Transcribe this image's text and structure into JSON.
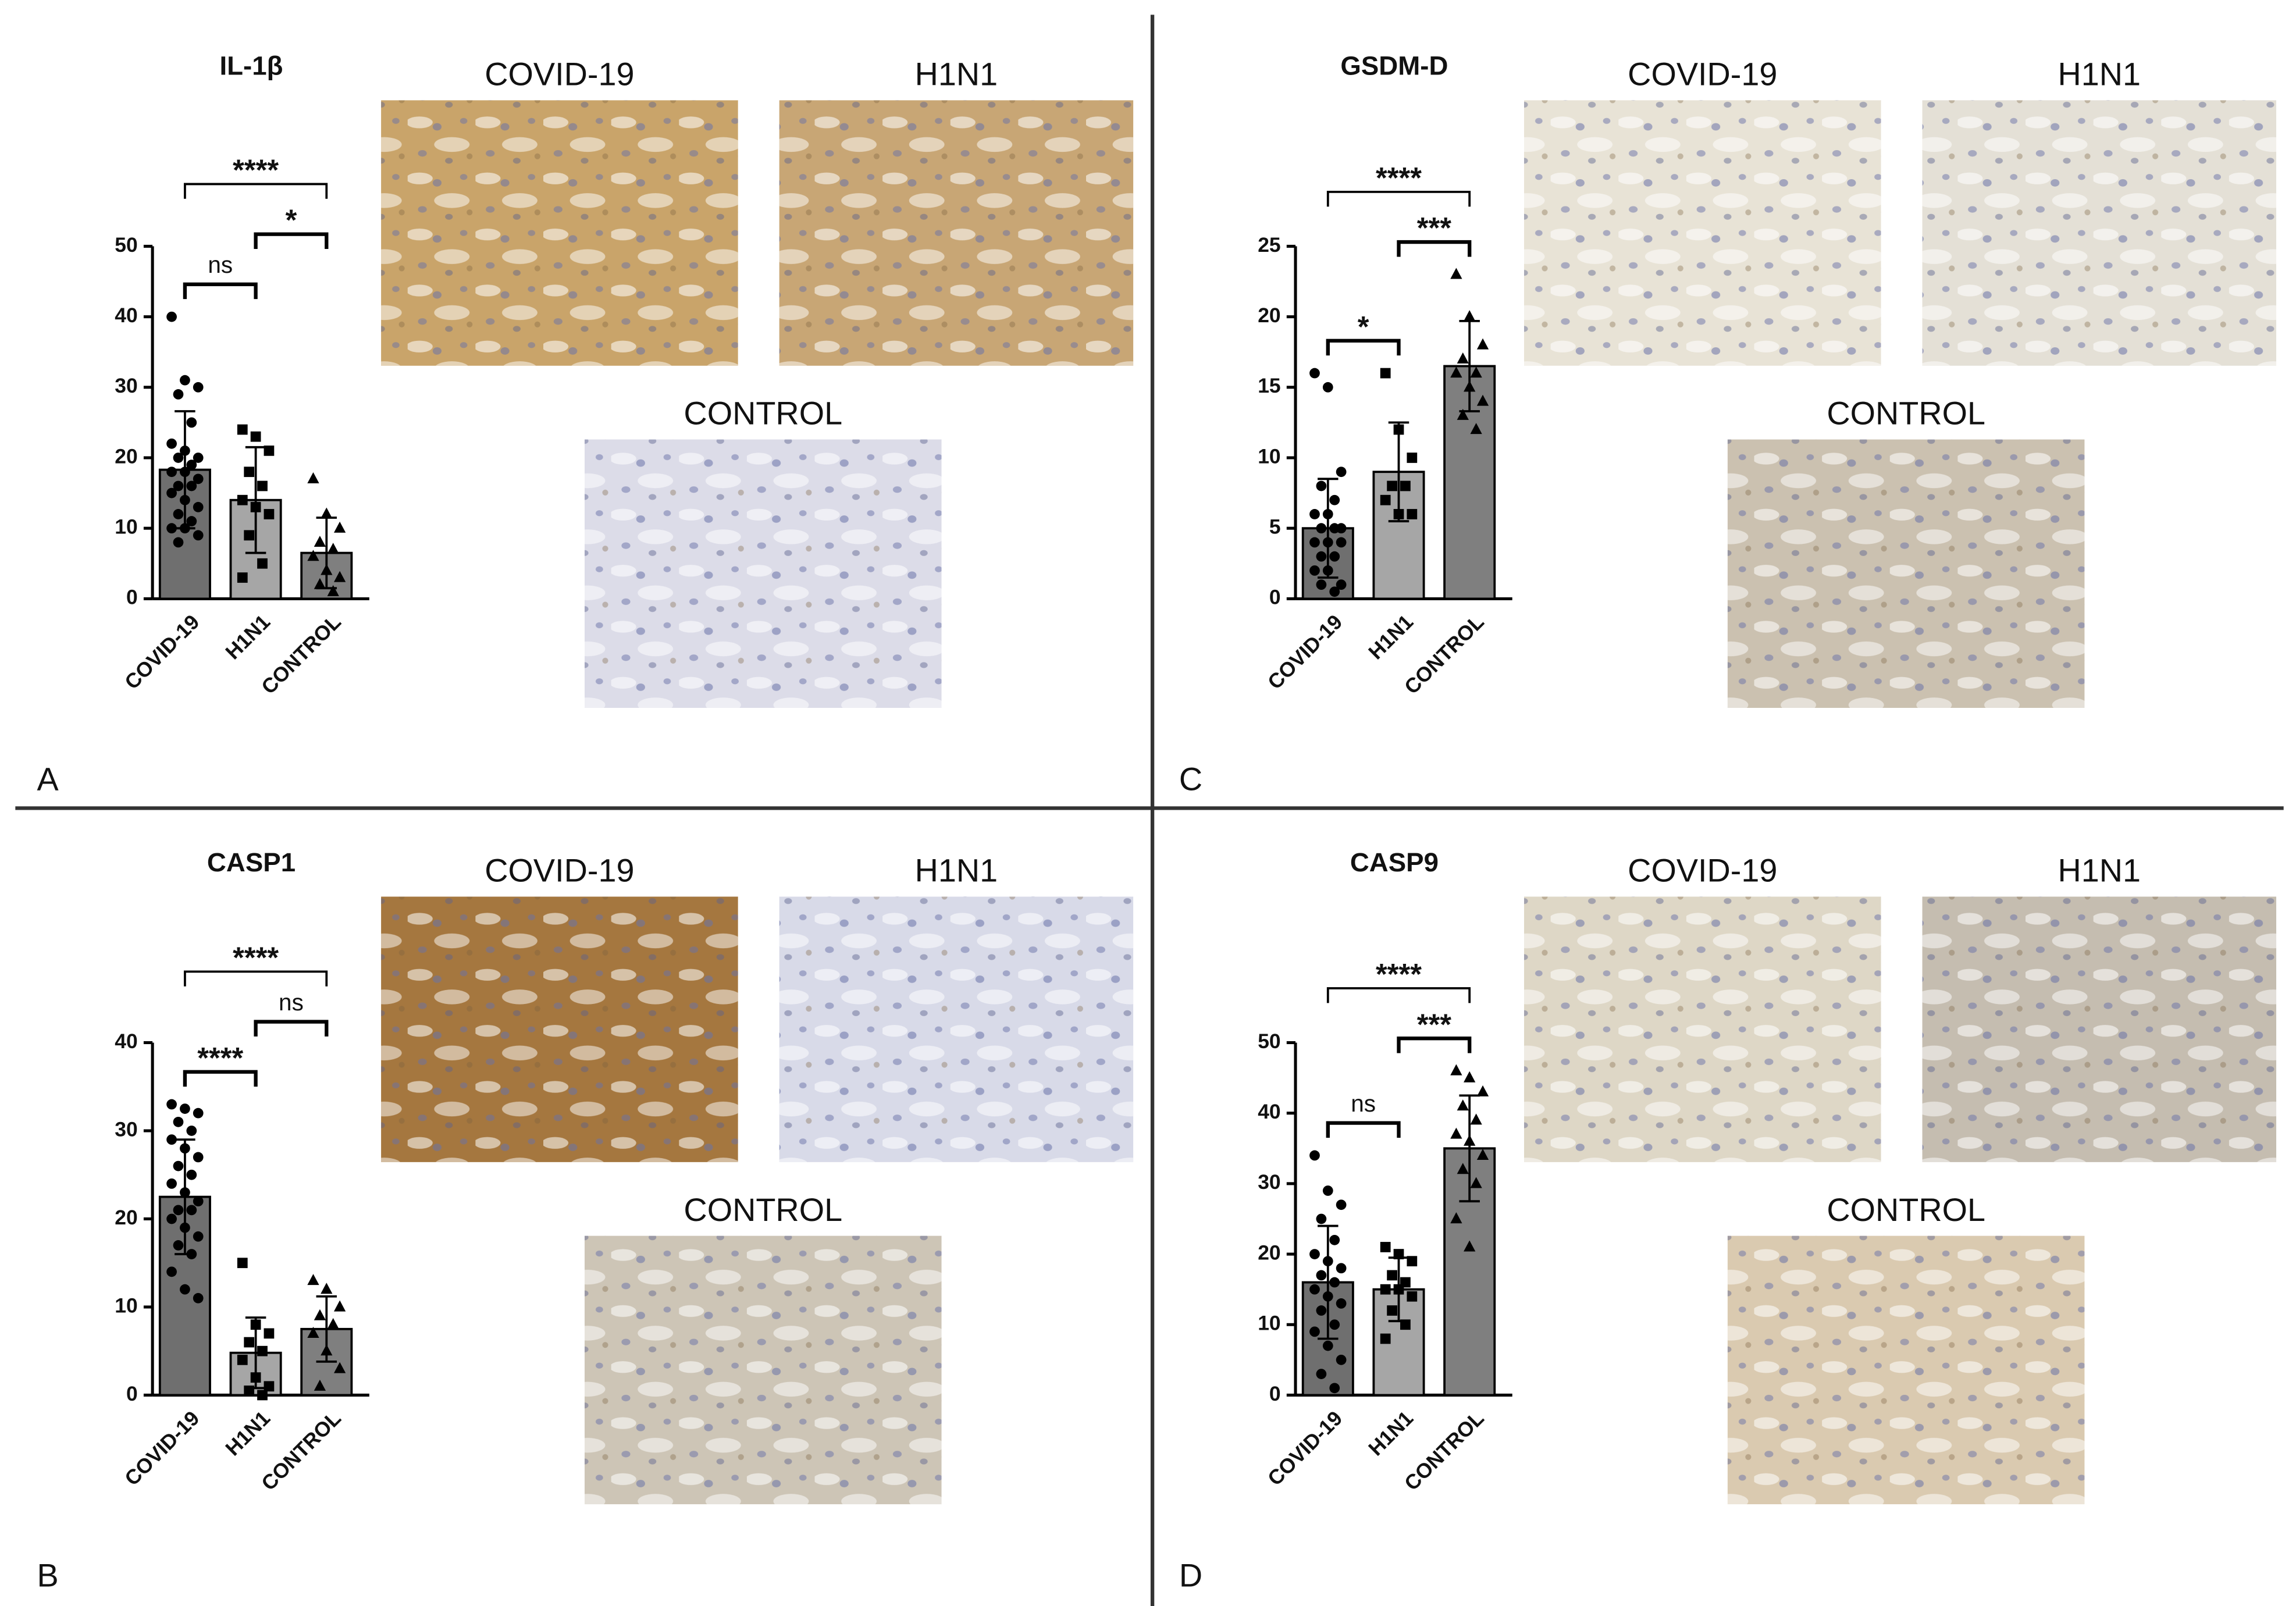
{
  "chart_data": [
    {
      "type": "bar",
      "panel": "A",
      "title": "IL-1β",
      "categories": [
        "COVID-19",
        "H1N1",
        "CONTROL"
      ],
      "values": [
        18.3,
        14,
        6.5
      ],
      "errors": [
        8.3,
        7.5,
        5
      ],
      "colors": [
        "#6f6f6f",
        "#a6a6a6",
        "#7f7f7f"
      ],
      "markers": [
        "circle",
        "square",
        "triangle"
      ],
      "points": [
        [
          40,
          31,
          30,
          29,
          25,
          22,
          21,
          20,
          20,
          19,
          18,
          18,
          17,
          16,
          16,
          15,
          14,
          13,
          12,
          11,
          10,
          10,
          9,
          8
        ],
        [
          24,
          23,
          21,
          18,
          16,
          14,
          13,
          12,
          9,
          5,
          3
        ],
        [
          17,
          12,
          10,
          8,
          7,
          6,
          4,
          3,
          2,
          1
        ]
      ],
      "ylim": [
        0,
        50
      ],
      "yticks": [
        0,
        10,
        20,
        30,
        40,
        50
      ],
      "comparisons": [
        {
          "groups": [
            "COVID-19",
            "H1N1"
          ],
          "label": "ns"
        },
        {
          "groups": [
            "H1N1",
            "CONTROL"
          ],
          "label": "*"
        },
        {
          "groups": [
            "COVID-19",
            "CONTROL"
          ],
          "label": "****"
        }
      ],
      "image_labels": [
        "COVID-19",
        "H1N1",
        "CONTROL"
      ],
      "image_tints": [
        "#c9a46a",
        "#c8a675",
        "#dcdce8"
      ]
    },
    {
      "type": "bar",
      "panel": "B",
      "title": "CASP1",
      "categories": [
        "COVID-19",
        "H1N1",
        "CONTROL"
      ],
      "values": [
        22.5,
        4.8,
        7.5
      ],
      "errors": [
        6.5,
        4,
        3.7
      ],
      "colors": [
        "#6f6f6f",
        "#a6a6a6",
        "#7f7f7f"
      ],
      "markers": [
        "circle",
        "square",
        "triangle"
      ],
      "points": [
        [
          33,
          32.5,
          32,
          31,
          30,
          29,
          28,
          27,
          26,
          25,
          24,
          23,
          22,
          21,
          21,
          20,
          19,
          18,
          17,
          16,
          14,
          12,
          11
        ],
        [
          15,
          8,
          7,
          6,
          5,
          4,
          2,
          1,
          0.5,
          0
        ],
        [
          13,
          12,
          10,
          9,
          8,
          7,
          5,
          3,
          1
        ]
      ],
      "ylim": [
        0,
        40
      ],
      "yticks": [
        0,
        10,
        20,
        30,
        40
      ],
      "comparisons": [
        {
          "groups": [
            "COVID-19",
            "H1N1"
          ],
          "label": "****"
        },
        {
          "groups": [
            "H1N1",
            "CONTROL"
          ],
          "label": "ns"
        },
        {
          "groups": [
            "COVID-19",
            "CONTROL"
          ],
          "label": "****"
        }
      ],
      "image_labels": [
        "COVID-19",
        "H1N1",
        "CONTROL"
      ],
      "image_tints": [
        "#a5773f",
        "#d8dae8",
        "#cdc5b6"
      ]
    },
    {
      "type": "bar",
      "panel": "C",
      "title": "GSDM-D",
      "categories": [
        "COVID-19",
        "H1N1",
        "CONTROL"
      ],
      "values": [
        5,
        9,
        16.5
      ],
      "errors": [
        3.5,
        3.5,
        3.2
      ],
      "colors": [
        "#6f6f6f",
        "#a6a6a6",
        "#7f7f7f"
      ],
      "markers": [
        "circle",
        "square",
        "triangle"
      ],
      "points": [
        [
          16,
          15,
          9,
          8,
          7,
          6,
          6,
          5,
          5,
          5,
          4,
          4,
          4,
          3,
          3,
          2,
          2,
          1,
          1,
          0.5
        ],
        [
          16,
          12,
          10,
          8,
          8,
          7,
          6,
          6
        ],
        [
          23,
          20,
          18,
          17,
          16,
          16,
          15,
          14,
          13,
          12
        ]
      ],
      "ylim": [
        0,
        25
      ],
      "yticks": [
        0,
        5,
        10,
        15,
        20,
        25
      ],
      "comparisons": [
        {
          "groups": [
            "COVID-19",
            "H1N1"
          ],
          "label": "*"
        },
        {
          "groups": [
            "H1N1",
            "CONTROL"
          ],
          "label": "***"
        },
        {
          "groups": [
            "COVID-19",
            "CONTROL"
          ],
          "label": "****"
        }
      ],
      "image_labels": [
        "COVID-19",
        "H1N1",
        "CONTROL"
      ],
      "image_tints": [
        "#e8e3d6",
        "#e4e0d6",
        "#cbc1b0"
      ]
    },
    {
      "type": "bar",
      "panel": "D",
      "title": "CASP9",
      "categories": [
        "COVID-19",
        "H1N1",
        "CONTROL"
      ],
      "values": [
        16,
        15,
        35
      ],
      "errors": [
        8,
        4.5,
        7.5
      ],
      "colors": [
        "#6f6f6f",
        "#a6a6a6",
        "#7f7f7f"
      ],
      "markers": [
        "circle",
        "square",
        "triangle"
      ],
      "points": [
        [
          34,
          29,
          27,
          25,
          22,
          20,
          19,
          18,
          17,
          16,
          15,
          14,
          13,
          12,
          10,
          9,
          7,
          5,
          3,
          1
        ],
        [
          21,
          20,
          19,
          17,
          16,
          15,
          15,
          14,
          12,
          10,
          8
        ],
        [
          46,
          45,
          43,
          41,
          39,
          37,
          36,
          34,
          32,
          30,
          25,
          21
        ]
      ],
      "ylim": [
        0,
        50
      ],
      "yticks": [
        0,
        10,
        20,
        30,
        40,
        50
      ],
      "comparisons": [
        {
          "groups": [
            "COVID-19",
            "H1N1"
          ],
          "label": "ns"
        },
        {
          "groups": [
            "H1N1",
            "CONTROL"
          ],
          "label": "***"
        },
        {
          "groups": [
            "COVID-19",
            "CONTROL"
          ],
          "label": "****"
        }
      ],
      "image_labels": [
        "COVID-19",
        "H1N1",
        "CONTROL"
      ],
      "image_tints": [
        "#ded7c6",
        "#c5bdb0",
        "#dacab0"
      ]
    }
  ]
}
